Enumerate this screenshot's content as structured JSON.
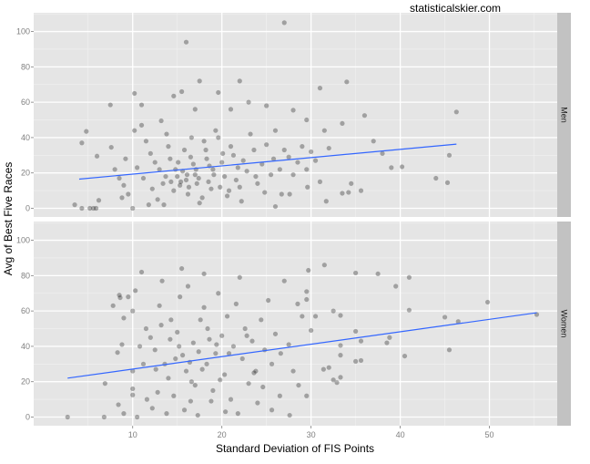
{
  "chart_data": {
    "type": "scatter",
    "watermark": "statisticalskier.com",
    "xlabel": "Standard Deviation of FIS Points",
    "ylabel": "Avg of Best Five Races",
    "xlim": [
      -1.1,
      57.6
    ],
    "ylim": [
      -4.9,
      110.6
    ],
    "x_ticks": [
      10,
      20,
      30,
      40,
      50
    ],
    "y_ticks": [
      0,
      20,
      40,
      60,
      80,
      100
    ],
    "grid": true,
    "point_color": "#000000",
    "point_alpha": 0.3,
    "line_color": "#3366FF",
    "panel_background": "#E5E5E5",
    "strip_background": "#C2C2C2",
    "panels": [
      {
        "label": "Men",
        "fit_line": [
          [
            4.0,
            16.5
          ],
          [
            46.3,
            36.3
          ]
        ],
        "points": [
          [
            27,
            105
          ],
          [
            16,
            94
          ],
          [
            17.5,
            72
          ],
          [
            22,
            72
          ],
          [
            34,
            71.5
          ],
          [
            31,
            68
          ],
          [
            15.5,
            66
          ],
          [
            10.2,
            65
          ],
          [
            19.6,
            65.5
          ],
          [
            14.6,
            63.5
          ],
          [
            7.5,
            58.5
          ],
          [
            11,
            58.5
          ],
          [
            21,
            56
          ],
          [
            28,
            55.5
          ],
          [
            46.3,
            54.5
          ],
          [
            36,
            52.5
          ],
          [
            17,
            56
          ],
          [
            23,
            60
          ],
          [
            25,
            58
          ],
          [
            29.5,
            50
          ],
          [
            33.5,
            48
          ],
          [
            31.5,
            44
          ],
          [
            37,
            38
          ],
          [
            38,
            31
          ],
          [
            39,
            23
          ],
          [
            40.2,
            23.5
          ],
          [
            44,
            17
          ],
          [
            45.3,
            14.5
          ],
          [
            45.5,
            30
          ],
          [
            34.5,
            14
          ],
          [
            35.6,
            10
          ],
          [
            33.5,
            8.5
          ],
          [
            34.2,
            9
          ],
          [
            31.7,
            4
          ],
          [
            29.6,
            12
          ],
          [
            27.6,
            8
          ],
          [
            26.7,
            8
          ],
          [
            26,
            1
          ],
          [
            3.5,
            2
          ],
          [
            4.3,
            0
          ],
          [
            5.2,
            0
          ],
          [
            5.6,
            0
          ],
          [
            5.9,
            0
          ],
          [
            6.2,
            4.5
          ],
          [
            4.8,
            43.5
          ],
          [
            4.3,
            37
          ],
          [
            7.6,
            34.5
          ],
          [
            6,
            29.5
          ],
          [
            8,
            22
          ],
          [
            8.5,
            17
          ],
          [
            9,
            13
          ],
          [
            9.5,
            8
          ],
          [
            10,
            0
          ],
          [
            10.2,
            44
          ],
          [
            11,
            47
          ],
          [
            11.5,
            38
          ],
          [
            12,
            31
          ],
          [
            12.5,
            26
          ],
          [
            13,
            22
          ],
          [
            13.2,
            49.5
          ],
          [
            13.8,
            42
          ],
          [
            14,
            35
          ],
          [
            14.3,
            15
          ],
          [
            14.6,
            10
          ],
          [
            15,
            18
          ],
          [
            15.3,
            13
          ],
          [
            15.6,
            21
          ],
          [
            16,
            16
          ],
          [
            16.2,
            8
          ],
          [
            16.5,
            29
          ],
          [
            16.8,
            25
          ],
          [
            17,
            19
          ],
          [
            17.2,
            14
          ],
          [
            17.5,
            3
          ],
          [
            18,
            38
          ],
          [
            18.2,
            33
          ],
          [
            18.5,
            15
          ],
          [
            18.8,
            11
          ],
          [
            19,
            22
          ],
          [
            19.3,
            44
          ],
          [
            19.6,
            40
          ],
          [
            20,
            26
          ],
          [
            20.3,
            18
          ],
          [
            20.6,
            7
          ],
          [
            21,
            35
          ],
          [
            21.3,
            30
          ],
          [
            21.6,
            16
          ],
          [
            22,
            12
          ],
          [
            22.4,
            27
          ],
          [
            22.8,
            21
          ],
          [
            23.2,
            42
          ],
          [
            23.6,
            33
          ],
          [
            24,
            14
          ],
          [
            24.5,
            25
          ],
          [
            25,
            36
          ],
          [
            25.5,
            19
          ],
          [
            26,
            44
          ],
          [
            26.5,
            22
          ],
          [
            27,
            33
          ],
          [
            27.5,
            29
          ],
          [
            28,
            19
          ],
          [
            28.5,
            26
          ],
          [
            29,
            35
          ],
          [
            29.5,
            22
          ],
          [
            30,
            32
          ],
          [
            30.5,
            27
          ],
          [
            31,
            15
          ],
          [
            32,
            34
          ],
          [
            12.2,
            11
          ],
          [
            12.8,
            5
          ],
          [
            13.5,
            2
          ],
          [
            14.2,
            28
          ],
          [
            15.8,
            33
          ],
          [
            16.6,
            40
          ],
          [
            17.8,
            6
          ],
          [
            18.6,
            24
          ],
          [
            19.8,
            12
          ],
          [
            11.2,
            17
          ],
          [
            10.5,
            23
          ],
          [
            9.2,
            28
          ],
          [
            8.8,
            6
          ],
          [
            11.8,
            2
          ],
          [
            13.7,
            18
          ],
          [
            15.1,
            26
          ],
          [
            16.3,
            12
          ],
          [
            17.4,
            17
          ],
          [
            19.1,
            19
          ],
          [
            20.8,
            10
          ],
          [
            22.2,
            4
          ],
          [
            23.8,
            18
          ],
          [
            24.8,
            9
          ],
          [
            25.8,
            28
          ],
          [
            15.4,
            15
          ],
          [
            16.1,
            19
          ],
          [
            14.8,
            22
          ],
          [
            13.4,
            14
          ],
          [
            17.1,
            22
          ],
          [
            18.3,
            28
          ],
          [
            20.1,
            31
          ],
          [
            21.8,
            23
          ]
        ]
      },
      {
        "label": "Women",
        "fit_line": [
          [
            2.7,
            22.0
          ],
          [
            55.3,
            59.0
          ]
        ],
        "points": [
          [
            11,
            82
          ],
          [
            15.5,
            84
          ],
          [
            18,
            81
          ],
          [
            31.5,
            86
          ],
          [
            35,
            81.5
          ],
          [
            37.5,
            81
          ],
          [
            41,
            79
          ],
          [
            39.5,
            74
          ],
          [
            49.8,
            65
          ],
          [
            45,
            56.5
          ],
          [
            46.5,
            54
          ],
          [
            55.3,
            58
          ],
          [
            41,
            60.5
          ],
          [
            40.5,
            34.5
          ],
          [
            45.5,
            38
          ],
          [
            38.5,
            42
          ],
          [
            38.8,
            45
          ],
          [
            35,
            31.5
          ],
          [
            35.6,
            32
          ],
          [
            35,
            48.5
          ],
          [
            35.6,
            43
          ],
          [
            33.3,
            57.5
          ],
          [
            33.3,
            40.5
          ],
          [
            33.3,
            35
          ],
          [
            33.3,
            22.5
          ],
          [
            32.5,
            60
          ],
          [
            32.5,
            21
          ],
          [
            32.9,
            19.5
          ],
          [
            31.4,
            27
          ],
          [
            32,
            28
          ],
          [
            29.7,
            83
          ],
          [
            29.5,
            71
          ],
          [
            29.5,
            66.5
          ],
          [
            2.7,
            0
          ],
          [
            6.8,
            0
          ],
          [
            6.9,
            19
          ],
          [
            7.8,
            63
          ],
          [
            8.5,
            69
          ],
          [
            8.6,
            67.5
          ],
          [
            9,
            56
          ],
          [
            8.3,
            36.5
          ],
          [
            8.8,
            41
          ],
          [
            9.5,
            68
          ],
          [
            10,
            60
          ],
          [
            10.3,
            71.5
          ],
          [
            10,
            26
          ],
          [
            10,
            16
          ],
          [
            10,
            12.5
          ],
          [
            8.4,
            7
          ],
          [
            9,
            2
          ],
          [
            10.5,
            0
          ],
          [
            11.5,
            50
          ],
          [
            12,
            45
          ],
          [
            12.5,
            38
          ],
          [
            13,
            63
          ],
          [
            13.3,
            77
          ],
          [
            13.6,
            30
          ],
          [
            14,
            22
          ],
          [
            14.3,
            55
          ],
          [
            14.6,
            12
          ],
          [
            15,
            48
          ],
          [
            15.3,
            68
          ],
          [
            15.6,
            35
          ],
          [
            16,
            26
          ],
          [
            16.2,
            74
          ],
          [
            16.5,
            9
          ],
          [
            16.8,
            42
          ],
          [
            17,
            18
          ],
          [
            17.3,
            1
          ],
          [
            17.6,
            55
          ],
          [
            18,
            62
          ],
          [
            18.3,
            30
          ],
          [
            18.6,
            44
          ],
          [
            19,
            15
          ],
          [
            19.3,
            36
          ],
          [
            19.6,
            70
          ],
          [
            20,
            46
          ],
          [
            20.3,
            24
          ],
          [
            20.6,
            57
          ],
          [
            21,
            10
          ],
          [
            21.3,
            40
          ],
          [
            21.6,
            64
          ],
          [
            22,
            79
          ],
          [
            22.3,
            33
          ],
          [
            22.6,
            50
          ],
          [
            23,
            19
          ],
          [
            23.4,
            43
          ],
          [
            23.8,
            26
          ],
          [
            24,
            8
          ],
          [
            24.4,
            55
          ],
          [
            24.8,
            38
          ],
          [
            25.2,
            66
          ],
          [
            25.6,
            30
          ],
          [
            26,
            47
          ],
          [
            26.5,
            12
          ],
          [
            27,
            77
          ],
          [
            27.5,
            41
          ],
          [
            28,
            26
          ],
          [
            28.5,
            64
          ],
          [
            29,
            57
          ],
          [
            29.5,
            12
          ],
          [
            30,
            49
          ],
          [
            30.5,
            57
          ],
          [
            11.2,
            30
          ],
          [
            12.2,
            5
          ],
          [
            12.8,
            14
          ],
          [
            13.8,
            2
          ],
          [
            14.8,
            33
          ],
          [
            15.8,
            4
          ],
          [
            16.6,
            20
          ],
          [
            17.8,
            27
          ],
          [
            18.8,
            9
          ],
          [
            19.8,
            21
          ],
          [
            20.8,
            36
          ],
          [
            21.8,
            2
          ],
          [
            22.8,
            46
          ],
          [
            23.6,
            25
          ],
          [
            24.6,
            17
          ],
          [
            25.6,
            4
          ],
          [
            26.6,
            36
          ],
          [
            27.6,
            1
          ],
          [
            28.6,
            18
          ],
          [
            15.2,
            40
          ],
          [
            16.4,
            31
          ],
          [
            17.4,
            37
          ],
          [
            18.4,
            50
          ],
          [
            19.4,
            41
          ],
          [
            20.4,
            3
          ],
          [
            13.2,
            52
          ],
          [
            14.2,
            44
          ],
          [
            12.6,
            27
          ],
          [
            11.6,
            10
          ],
          [
            10.8,
            40
          ]
        ]
      }
    ]
  }
}
